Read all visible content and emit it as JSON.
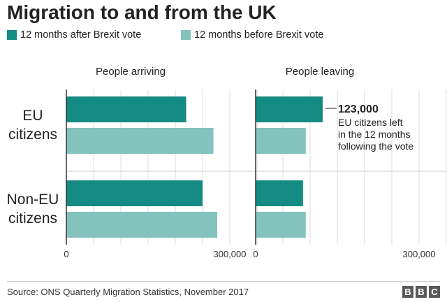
{
  "title": "Migration to and from the UK",
  "legend": {
    "after": "12 months after Brexit vote",
    "before": "12 months before Brexit vote"
  },
  "colors": {
    "after": "#138a82",
    "before": "#83c2bd",
    "grid": "#dddddd",
    "axis": "#333333"
  },
  "chart_data": {
    "type": "bar",
    "orientation": "horizontal",
    "title": "Migration to and from the UK",
    "panels": [
      {
        "title": "People arriving",
        "xlim": [
          0,
          350000
        ],
        "tick_labels": [
          "0",
          "300,000"
        ],
        "ticks": [
          0,
          300000
        ]
      },
      {
        "title": "People leaving",
        "xlim": [
          0,
          350000
        ],
        "tick_labels": [
          "0",
          "300,000"
        ],
        "ticks": [
          0,
          300000
        ]
      }
    ],
    "groups": [
      {
        "label_line1": "EU",
        "label_line2": "citizens"
      },
      {
        "label_line1": "Non-EU",
        "label_line2": "citizens"
      }
    ],
    "series": [
      {
        "name": "12 months after Brexit vote",
        "arriving": [
          220000,
          250000
        ],
        "leaving": [
          123000,
          87000
        ]
      },
      {
        "name": "12 months before Brexit vote",
        "arriving": [
          270000,
          277000
        ],
        "leaving": [
          92000,
          92000
        ]
      }
    ],
    "annotation": {
      "value": "123,000",
      "line1": "EU citizens left",
      "line2": "in the 12 months",
      "line3": "following the vote"
    },
    "grid": true
  },
  "footer": {
    "source": "Source: ONS Quarterly Migration Statistics, November 2017",
    "logo": [
      "B",
      "B",
      "C"
    ]
  }
}
